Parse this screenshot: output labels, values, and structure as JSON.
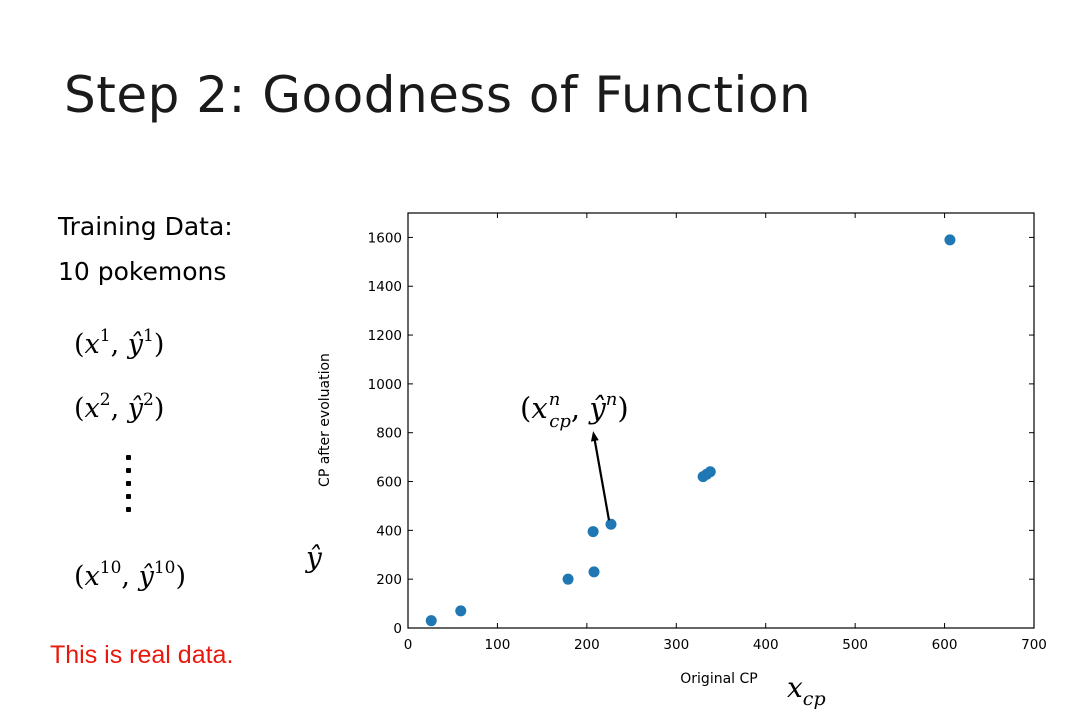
{
  "slide": {
    "title": "Step 2: Goodness of Function",
    "training_heading_line1": "Training Data:",
    "training_heading_line2": "10 pokemons",
    "pairs": [
      {
        "x": "x",
        "sup": "1",
        "y": "ŷ"
      },
      {
        "x": "x",
        "sup": "2",
        "y": "ŷ"
      },
      {
        "x": "x",
        "sup": "10",
        "y": "ŷ"
      }
    ],
    "note": "This is real data.",
    "note_color": "#e8180c"
  },
  "chart_data": {
    "type": "scatter",
    "title": "",
    "xlabel": "Original CP",
    "ylabel": "CP after evoluation",
    "xlim": [
      0,
      700
    ],
    "ylim": [
      0,
      1700
    ],
    "xticks": [
      0,
      100,
      200,
      300,
      400,
      500,
      600,
      700
    ],
    "yticks": [
      0,
      200,
      400,
      600,
      800,
      1000,
      1200,
      1400,
      1600
    ],
    "point_color": "#1f77b4",
    "grid": false,
    "points": [
      {
        "x": 26,
        "y": 30
      },
      {
        "x": 59,
        "y": 70
      },
      {
        "x": 179,
        "y": 200
      },
      {
        "x": 207,
        "y": 395
      },
      {
        "x": 208,
        "y": 230
      },
      {
        "x": 227,
        "y": 425
      },
      {
        "x": 330,
        "y": 620
      },
      {
        "x": 334,
        "y": 630
      },
      {
        "x": 338,
        "y": 640
      },
      {
        "x": 606,
        "y": 1590
      }
    ],
    "annotation": {
      "label": "(x_cp^n, ŷ^n)",
      "x_sym": "x",
      "x_sub": "cp",
      "x_sup": "n",
      "y_sym": "ŷ",
      "y_sup": "n",
      "points_to": {
        "x": 227,
        "y": 425
      }
    },
    "x_math_label": {
      "sym": "x",
      "sub": "cp"
    },
    "y_math_label": "ŷ"
  }
}
